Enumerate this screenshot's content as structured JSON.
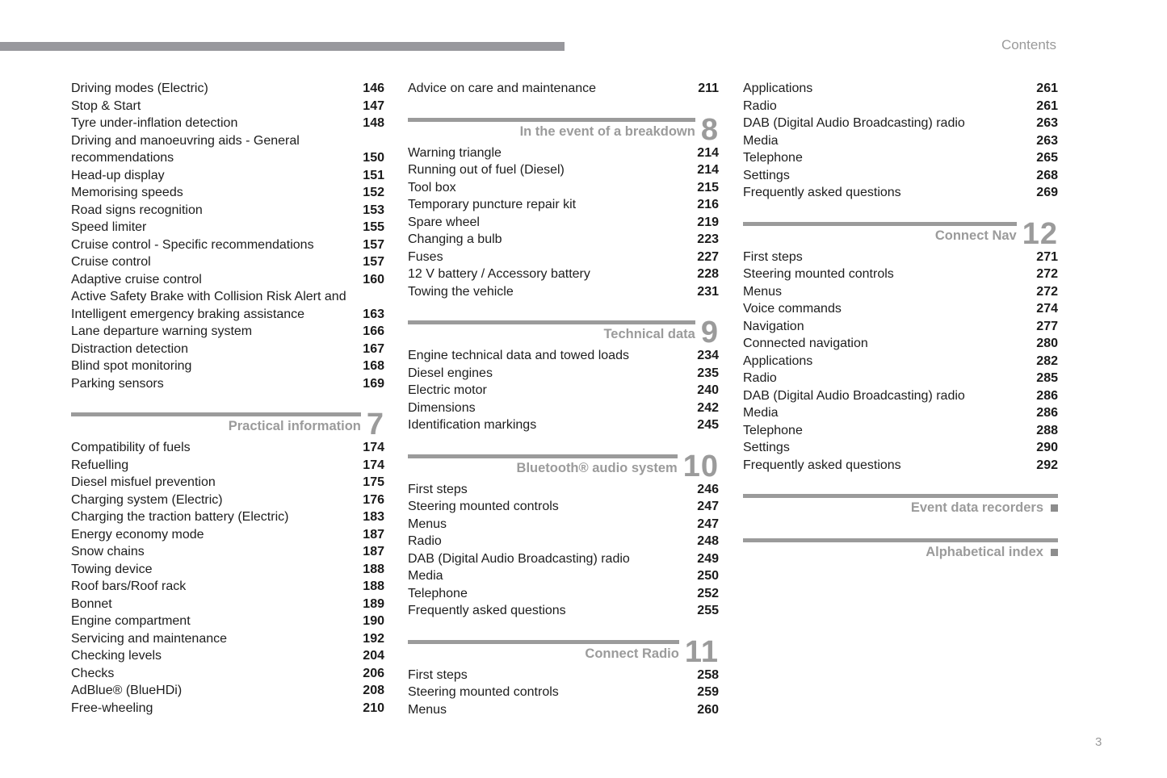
{
  "header": {
    "title": "Contents"
  },
  "footer": {
    "page_number": "3"
  },
  "colors": {
    "rule_gray": "#98989d",
    "section_gray": "#9b9b9b",
    "text_dark": "#1d1d1d",
    "marker_gray": "#8d8d8d"
  },
  "columns": [
    {
      "name": "left",
      "blocks": [
        {
          "type": "entries",
          "items": [
            {
              "label": "Driving modes (Electric)",
              "page": "146"
            },
            {
              "label": "Stop & Start",
              "page": "147"
            },
            {
              "label": "Tyre under-inflation detection",
              "page": "148"
            },
            {
              "label": "Driving and manoeuvring aids - General recommendations",
              "page": "150"
            },
            {
              "label": "Head-up display",
              "page": "151"
            },
            {
              "label": "Memorising speeds",
              "page": "152"
            },
            {
              "label": "Road signs recognition",
              "page": "153"
            },
            {
              "label": "Speed limiter",
              "page": "155"
            },
            {
              "label": "Cruise control - Specific recommendations",
              "page": "157"
            },
            {
              "label": "Cruise control",
              "page": "157"
            },
            {
              "label": "Adaptive cruise control",
              "page": "160"
            },
            {
              "label": "Active Safety Brake with Collision Risk Alert and Intelligent emergency braking assistance",
              "page": "163"
            },
            {
              "label": "Lane departure warning system",
              "page": "166"
            },
            {
              "label": "Distraction detection",
              "page": "167"
            },
            {
              "label": "Blind spot monitoring",
              "page": "168"
            },
            {
              "label": "Parking sensors",
              "page": "169"
            }
          ]
        },
        {
          "type": "section",
          "title": "Practical information",
          "number": "7",
          "items": [
            {
              "label": "Compatibility of fuels",
              "page": "174"
            },
            {
              "label": "Refuelling",
              "page": "174"
            },
            {
              "label": "Diesel misfuel prevention",
              "page": "175"
            },
            {
              "label": "Charging system (Electric)",
              "page": "176"
            },
            {
              "label": "Charging the traction battery (Electric)",
              "page": "183"
            },
            {
              "label": "Energy economy mode",
              "page": "187"
            },
            {
              "label": "Snow chains",
              "page": "187"
            },
            {
              "label": "Towing device",
              "page": "188"
            },
            {
              "label": "Roof bars/Roof rack",
              "page": "188"
            },
            {
              "label": "Bonnet",
              "page": "189"
            },
            {
              "label": "Engine compartment",
              "page": "190"
            },
            {
              "label": "Servicing and maintenance",
              "page": "192"
            },
            {
              "label": "Checking levels",
              "page": "204"
            },
            {
              "label": "Checks",
              "page": "206"
            },
            {
              "label": "AdBlue® (BlueHDi)",
              "page": "208"
            },
            {
              "label": "Free-wheeling",
              "page": "210"
            }
          ]
        }
      ]
    },
    {
      "name": "middle",
      "blocks": [
        {
          "type": "entries",
          "items": [
            {
              "label": "Advice on care and maintenance",
              "page": "211"
            }
          ]
        },
        {
          "type": "section",
          "title": "In the event of a breakdown",
          "number": "8",
          "items": [
            {
              "label": "Warning triangle",
              "page": "214"
            },
            {
              "label": "Running out of fuel (Diesel)",
              "page": "214"
            },
            {
              "label": "Tool box",
              "page": "215"
            },
            {
              "label": "Temporary puncture repair kit",
              "page": "216"
            },
            {
              "label": "Spare wheel",
              "page": "219"
            },
            {
              "label": "Changing a bulb",
              "page": "223"
            },
            {
              "label": "Fuses",
              "page": "227"
            },
            {
              "label": "12 V battery / Accessory battery",
              "page": "228"
            },
            {
              "label": "Towing the vehicle",
              "page": "231"
            }
          ]
        },
        {
          "type": "section",
          "title": "Technical data",
          "number": "9",
          "items": [
            {
              "label": "Engine technical data and towed loads",
              "page": "234"
            },
            {
              "label": "Diesel engines",
              "page": "235"
            },
            {
              "label": "Electric motor",
              "page": "240"
            },
            {
              "label": "Dimensions",
              "page": "242"
            },
            {
              "label": "Identification markings",
              "page": "245"
            }
          ]
        },
        {
          "type": "section",
          "title": "Bluetooth® audio system",
          "number": "10",
          "items": [
            {
              "label": "First steps",
              "page": "246"
            },
            {
              "label": "Steering mounted controls",
              "page": "247"
            },
            {
              "label": "Menus",
              "page": "247"
            },
            {
              "label": "Radio",
              "page": "248"
            },
            {
              "label": "DAB (Digital Audio Broadcasting) radio",
              "page": "249"
            },
            {
              "label": "Media",
              "page": "250"
            },
            {
              "label": "Telephone",
              "page": "252"
            },
            {
              "label": "Frequently asked questions",
              "page": "255"
            }
          ]
        },
        {
          "type": "section",
          "title": "Connect Radio",
          "number": "11",
          "items": [
            {
              "label": "First steps",
              "page": "258"
            },
            {
              "label": "Steering mounted controls",
              "page": "259"
            },
            {
              "label": "Menus",
              "page": "260"
            }
          ]
        }
      ]
    },
    {
      "name": "right",
      "blocks": [
        {
          "type": "entries",
          "items": [
            {
              "label": "Applications",
              "page": "261"
            },
            {
              "label": "Radio",
              "page": "261"
            },
            {
              "label": "DAB (Digital Audio Broadcasting) radio",
              "page": "263"
            },
            {
              "label": "Media",
              "page": "263"
            },
            {
              "label": "Telephone",
              "page": "265"
            },
            {
              "label": "Settings",
              "page": "268"
            },
            {
              "label": "Frequently asked questions",
              "page": "269"
            }
          ]
        },
        {
          "type": "section",
          "title": "Connect Nav",
          "number": "12",
          "items": [
            {
              "label": "First steps",
              "page": "271"
            },
            {
              "label": "Steering mounted controls",
              "page": "272"
            },
            {
              "label": "Menus",
              "page": "272"
            },
            {
              "label": "Voice commands",
              "page": "274"
            },
            {
              "label": "Navigation",
              "page": "277"
            },
            {
              "label": "Connected navigation",
              "page": "280"
            },
            {
              "label": "Applications",
              "page": "282"
            },
            {
              "label": "Radio",
              "page": "285"
            },
            {
              "label": "DAB (Digital Audio Broadcasting) radio",
              "page": "286"
            },
            {
              "label": "Media",
              "page": "286"
            },
            {
              "label": "Telephone",
              "page": "288"
            },
            {
              "label": "Settings",
              "page": "290"
            },
            {
              "label": "Frequently asked questions",
              "page": "292"
            }
          ]
        },
        {
          "type": "marker_section",
          "title": "Event data recorders"
        },
        {
          "type": "marker_section",
          "title": "Alphabetical index"
        }
      ]
    }
  ]
}
